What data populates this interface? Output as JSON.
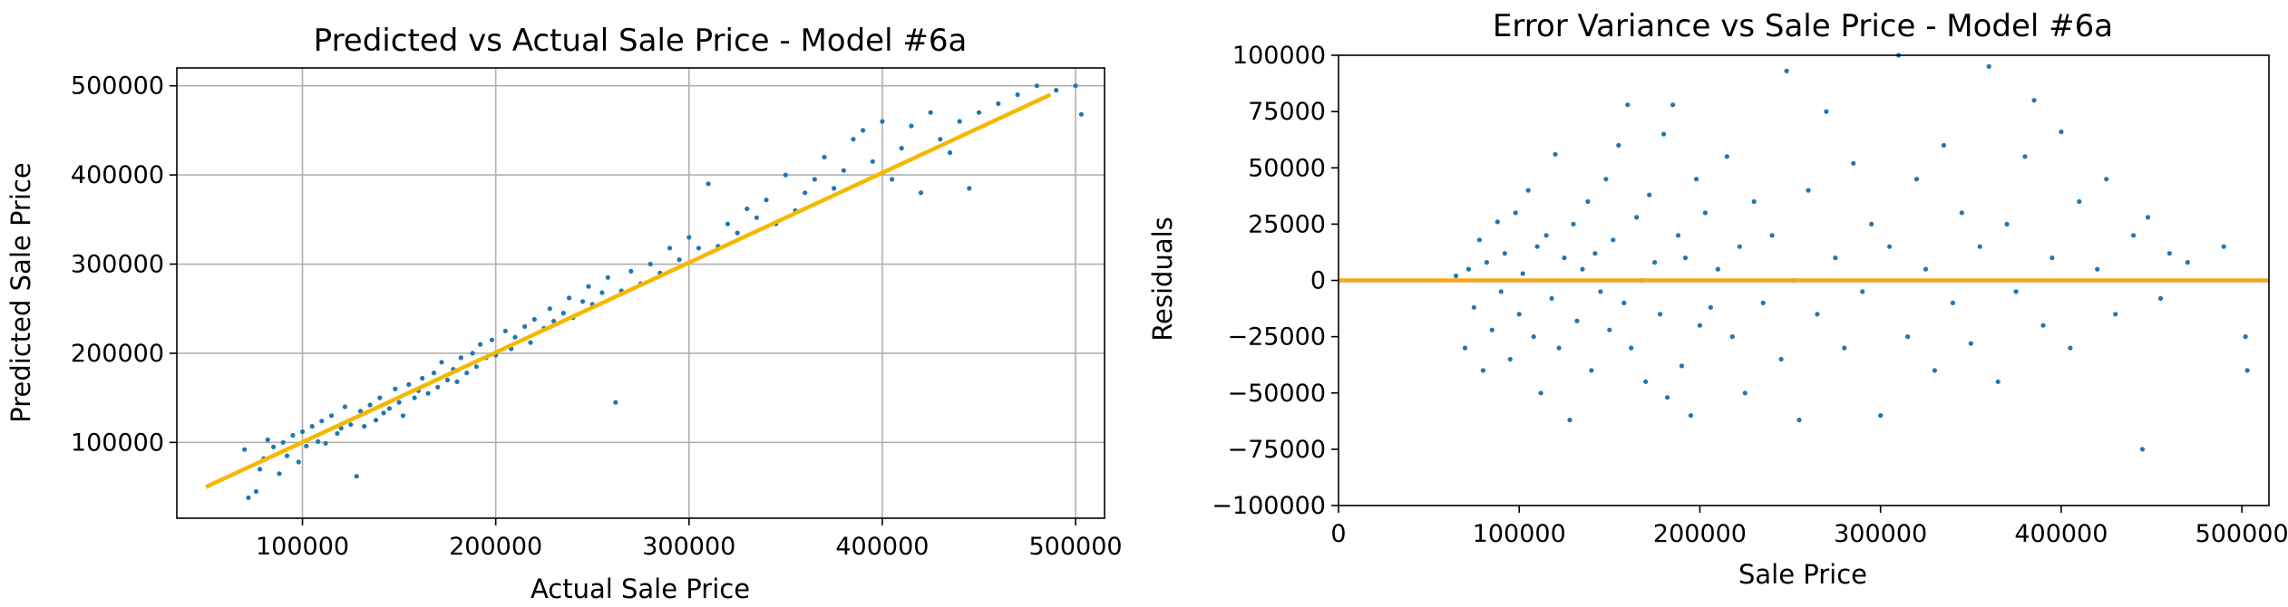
{
  "chart_data": [
    {
      "type": "scatter",
      "title": "Predicted vs Actual Sale Price - Model #6a",
      "xlabel": "Actual Sale Price",
      "ylabel": "Predicted Sale Price",
      "xlim": [
        35000,
        515000
      ],
      "ylim": [
        15000,
        520000
      ],
      "xticks": [
        100000,
        200000,
        300000,
        400000,
        500000
      ],
      "yticks": [
        100000,
        200000,
        300000,
        400000,
        500000
      ],
      "grid": true,
      "series": [
        {
          "kind": "points",
          "color": "#1f77b4",
          "points": [
            [
              70000,
              92000
            ],
            [
              72000,
              38000
            ],
            [
              76000,
              45000
            ],
            [
              78000,
              70000
            ],
            [
              80000,
              82000
            ],
            [
              82000,
              103000
            ],
            [
              85000,
              95000
            ],
            [
              88000,
              65000
            ],
            [
              90000,
              100000
            ],
            [
              92000,
              85000
            ],
            [
              95000,
              108000
            ],
            [
              98000,
              78000
            ],
            [
              100000,
              112000
            ],
            [
              102000,
              96000
            ],
            [
              105000,
              118000
            ],
            [
              108000,
              101000
            ],
            [
              110000,
              124000
            ],
            [
              112000,
              99000
            ],
            [
              115000,
              130000
            ],
            [
              118000,
              110000
            ],
            [
              120000,
              116000
            ],
            [
              122000,
              140000
            ],
            [
              125000,
              120000
            ],
            [
              128000,
              62000
            ],
            [
              130000,
              135000
            ],
            [
              132000,
              118000
            ],
            [
              135000,
              142000
            ],
            [
              138000,
              125000
            ],
            [
              140000,
              150000
            ],
            [
              142000,
              133000
            ],
            [
              145000,
              138000
            ],
            [
              148000,
              160000
            ],
            [
              150000,
              145000
            ],
            [
              152000,
              130000
            ],
            [
              155000,
              165000
            ],
            [
              158000,
              150000
            ],
            [
              160000,
              158000
            ],
            [
              162000,
              172000
            ],
            [
              165000,
              155000
            ],
            [
              168000,
              178000
            ],
            [
              170000,
              162000
            ],
            [
              172000,
              190000
            ],
            [
              175000,
              170000
            ],
            [
              178000,
              182000
            ],
            [
              180000,
              168000
            ],
            [
              182000,
              195000
            ],
            [
              185000,
              178000
            ],
            [
              188000,
              200000
            ],
            [
              190000,
              185000
            ],
            [
              192000,
              210000
            ],
            [
              195000,
              195000
            ],
            [
              198000,
              215000
            ],
            [
              200000,
              198000
            ],
            [
              205000,
              225000
            ],
            [
              208000,
              205000
            ],
            [
              210000,
              218000
            ],
            [
              215000,
              230000
            ],
            [
              218000,
              212000
            ],
            [
              220000,
              238000
            ],
            [
              225000,
              228000
            ],
            [
              228000,
              250000
            ],
            [
              230000,
              236000
            ],
            [
              235000,
              245000
            ],
            [
              238000,
              262000
            ],
            [
              240000,
              240000
            ],
            [
              245000,
              258000
            ],
            [
              248000,
              275000
            ],
            [
              250000,
              255000
            ],
            [
              255000,
              268000
            ],
            [
              258000,
              285000
            ],
            [
              262000,
              145000
            ],
            [
              265000,
              270000
            ],
            [
              270000,
              292000
            ],
            [
              275000,
              278000
            ],
            [
              280000,
              300000
            ],
            [
              285000,
              290000
            ],
            [
              290000,
              318000
            ],
            [
              295000,
              305000
            ],
            [
              300000,
              330000
            ],
            [
              305000,
              318000
            ],
            [
              310000,
              390000
            ],
            [
              315000,
              320000
            ],
            [
              320000,
              345000
            ],
            [
              325000,
              335000
            ],
            [
              330000,
              362000
            ],
            [
              335000,
              352000
            ],
            [
              340000,
              372000
            ],
            [
              345000,
              345000
            ],
            [
              350000,
              400000
            ],
            [
              355000,
              360000
            ],
            [
              360000,
              380000
            ],
            [
              365000,
              395000
            ],
            [
              370000,
              420000
            ],
            [
              375000,
              385000
            ],
            [
              380000,
              405000
            ],
            [
              385000,
              440000
            ],
            [
              390000,
              450000
            ],
            [
              395000,
              415000
            ],
            [
              400000,
              460000
            ],
            [
              405000,
              395000
            ],
            [
              410000,
              430000
            ],
            [
              415000,
              455000
            ],
            [
              420000,
              380000
            ],
            [
              425000,
              470000
            ],
            [
              430000,
              440000
            ],
            [
              435000,
              425000
            ],
            [
              440000,
              460000
            ],
            [
              445000,
              385000
            ],
            [
              450000,
              470000
            ],
            [
              460000,
              480000
            ],
            [
              470000,
              490000
            ],
            [
              480000,
              500000
            ],
            [
              490000,
              495000
            ],
            [
              500000,
              500000
            ],
            [
              503000,
              468000
            ]
          ]
        },
        {
          "kind": "line",
          "color": "#f5b800",
          "points": [
            [
              50000,
              50000
            ],
            [
              487000,
              490000
            ]
          ]
        }
      ]
    },
    {
      "type": "scatter",
      "title": "Error Variance vs Sale Price - Model #6a",
      "xlabel": "Sale Price",
      "ylabel": "Residuals",
      "xlim": [
        0,
        515000
      ],
      "ylim": [
        -100000,
        100000
      ],
      "xticks": [
        0,
        100000,
        200000,
        300000,
        400000,
        500000
      ],
      "yticks": [
        -100000,
        -75000,
        -50000,
        -25000,
        0,
        25000,
        50000,
        75000,
        100000
      ],
      "ytick_labels": [
        "−100000",
        "−75000",
        "−50000",
        "−25000",
        "0",
        "25000",
        "50000",
        "75000",
        "100000"
      ],
      "grid": false,
      "series": [
        {
          "kind": "points",
          "color": "#1f77b4",
          "points": [
            [
              65000,
              2000
            ],
            [
              70000,
              -30000
            ],
            [
              72000,
              5000
            ],
            [
              75000,
              -12000
            ],
            [
              78000,
              18000
            ],
            [
              80000,
              -40000
            ],
            [
              82000,
              8000
            ],
            [
              85000,
              -22000
            ],
            [
              88000,
              26000
            ],
            [
              90000,
              -5000
            ],
            [
              92000,
              12000
            ],
            [
              95000,
              -35000
            ],
            [
              98000,
              30000
            ],
            [
              100000,
              -15000
            ],
            [
              102000,
              3000
            ],
            [
              105000,
              40000
            ],
            [
              108000,
              -25000
            ],
            [
              110000,
              15000
            ],
            [
              112000,
              -50000
            ],
            [
              115000,
              20000
            ],
            [
              118000,
              -8000
            ],
            [
              120000,
              56000
            ],
            [
              122000,
              -30000
            ],
            [
              125000,
              10000
            ],
            [
              128000,
              -62000
            ],
            [
              130000,
              25000
            ],
            [
              132000,
              -18000
            ],
            [
              135000,
              5000
            ],
            [
              138000,
              35000
            ],
            [
              140000,
              -40000
            ],
            [
              142000,
              12000
            ],
            [
              145000,
              -5000
            ],
            [
              148000,
              45000
            ],
            [
              150000,
              -22000
            ],
            [
              152000,
              18000
            ],
            [
              155000,
              60000
            ],
            [
              158000,
              -10000
            ],
            [
              160000,
              78000
            ],
            [
              162000,
              -30000
            ],
            [
              165000,
              28000
            ],
            [
              168000,
              0
            ],
            [
              170000,
              -45000
            ],
            [
              172000,
              38000
            ],
            [
              175000,
              8000
            ],
            [
              178000,
              -15000
            ],
            [
              180000,
              65000
            ],
            [
              182000,
              -52000
            ],
            [
              185000,
              78000
            ],
            [
              188000,
              20000
            ],
            [
              190000,
              -38000
            ],
            [
              192000,
              10000
            ],
            [
              195000,
              -60000
            ],
            [
              198000,
              45000
            ],
            [
              200000,
              -20000
            ],
            [
              203000,
              30000
            ],
            [
              206000,
              -12000
            ],
            [
              210000,
              5000
            ],
            [
              215000,
              55000
            ],
            [
              218000,
              -25000
            ],
            [
              222000,
              15000
            ],
            [
              225000,
              -50000
            ],
            [
              230000,
              35000
            ],
            [
              235000,
              -10000
            ],
            [
              240000,
              20000
            ],
            [
              245000,
              -35000
            ],
            [
              248000,
              93000
            ],
            [
              252000,
              0
            ],
            [
              255000,
              -62000
            ],
            [
              260000,
              40000
            ],
            [
              265000,
              -15000
            ],
            [
              270000,
              75000
            ],
            [
              275000,
              10000
            ],
            [
              280000,
              -30000
            ],
            [
              285000,
              52000
            ],
            [
              290000,
              -5000
            ],
            [
              295000,
              25000
            ],
            [
              300000,
              -60000
            ],
            [
              305000,
              15000
            ],
            [
              310000,
              100000
            ],
            [
              315000,
              -25000
            ],
            [
              320000,
              45000
            ],
            [
              325000,
              5000
            ],
            [
              330000,
              -40000
            ],
            [
              335000,
              60000
            ],
            [
              340000,
              -10000
            ],
            [
              345000,
              30000
            ],
            [
              350000,
              -28000
            ],
            [
              355000,
              15000
            ],
            [
              360000,
              95000
            ],
            [
              365000,
              -45000
            ],
            [
              370000,
              25000
            ],
            [
              375000,
              -5000
            ],
            [
              380000,
              55000
            ],
            [
              385000,
              80000
            ],
            [
              390000,
              -20000
            ],
            [
              395000,
              10000
            ],
            [
              400000,
              66000
            ],
            [
              405000,
              -30000
            ],
            [
              410000,
              35000
            ],
            [
              420000,
              5000
            ],
            [
              425000,
              45000
            ],
            [
              430000,
              -15000
            ],
            [
              440000,
              20000
            ],
            [
              445000,
              -75000
            ],
            [
              448000,
              28000
            ],
            [
              455000,
              -8000
            ],
            [
              460000,
              12000
            ],
            [
              470000,
              8000
            ],
            [
              490000,
              15000
            ],
            [
              502000,
              -25000
            ],
            [
              503000,
              -40000
            ]
          ]
        },
        {
          "kind": "line",
          "color": "#f5a623",
          "points": [
            [
              0,
              0
            ],
            [
              515000,
              0
            ]
          ]
        }
      ]
    }
  ]
}
